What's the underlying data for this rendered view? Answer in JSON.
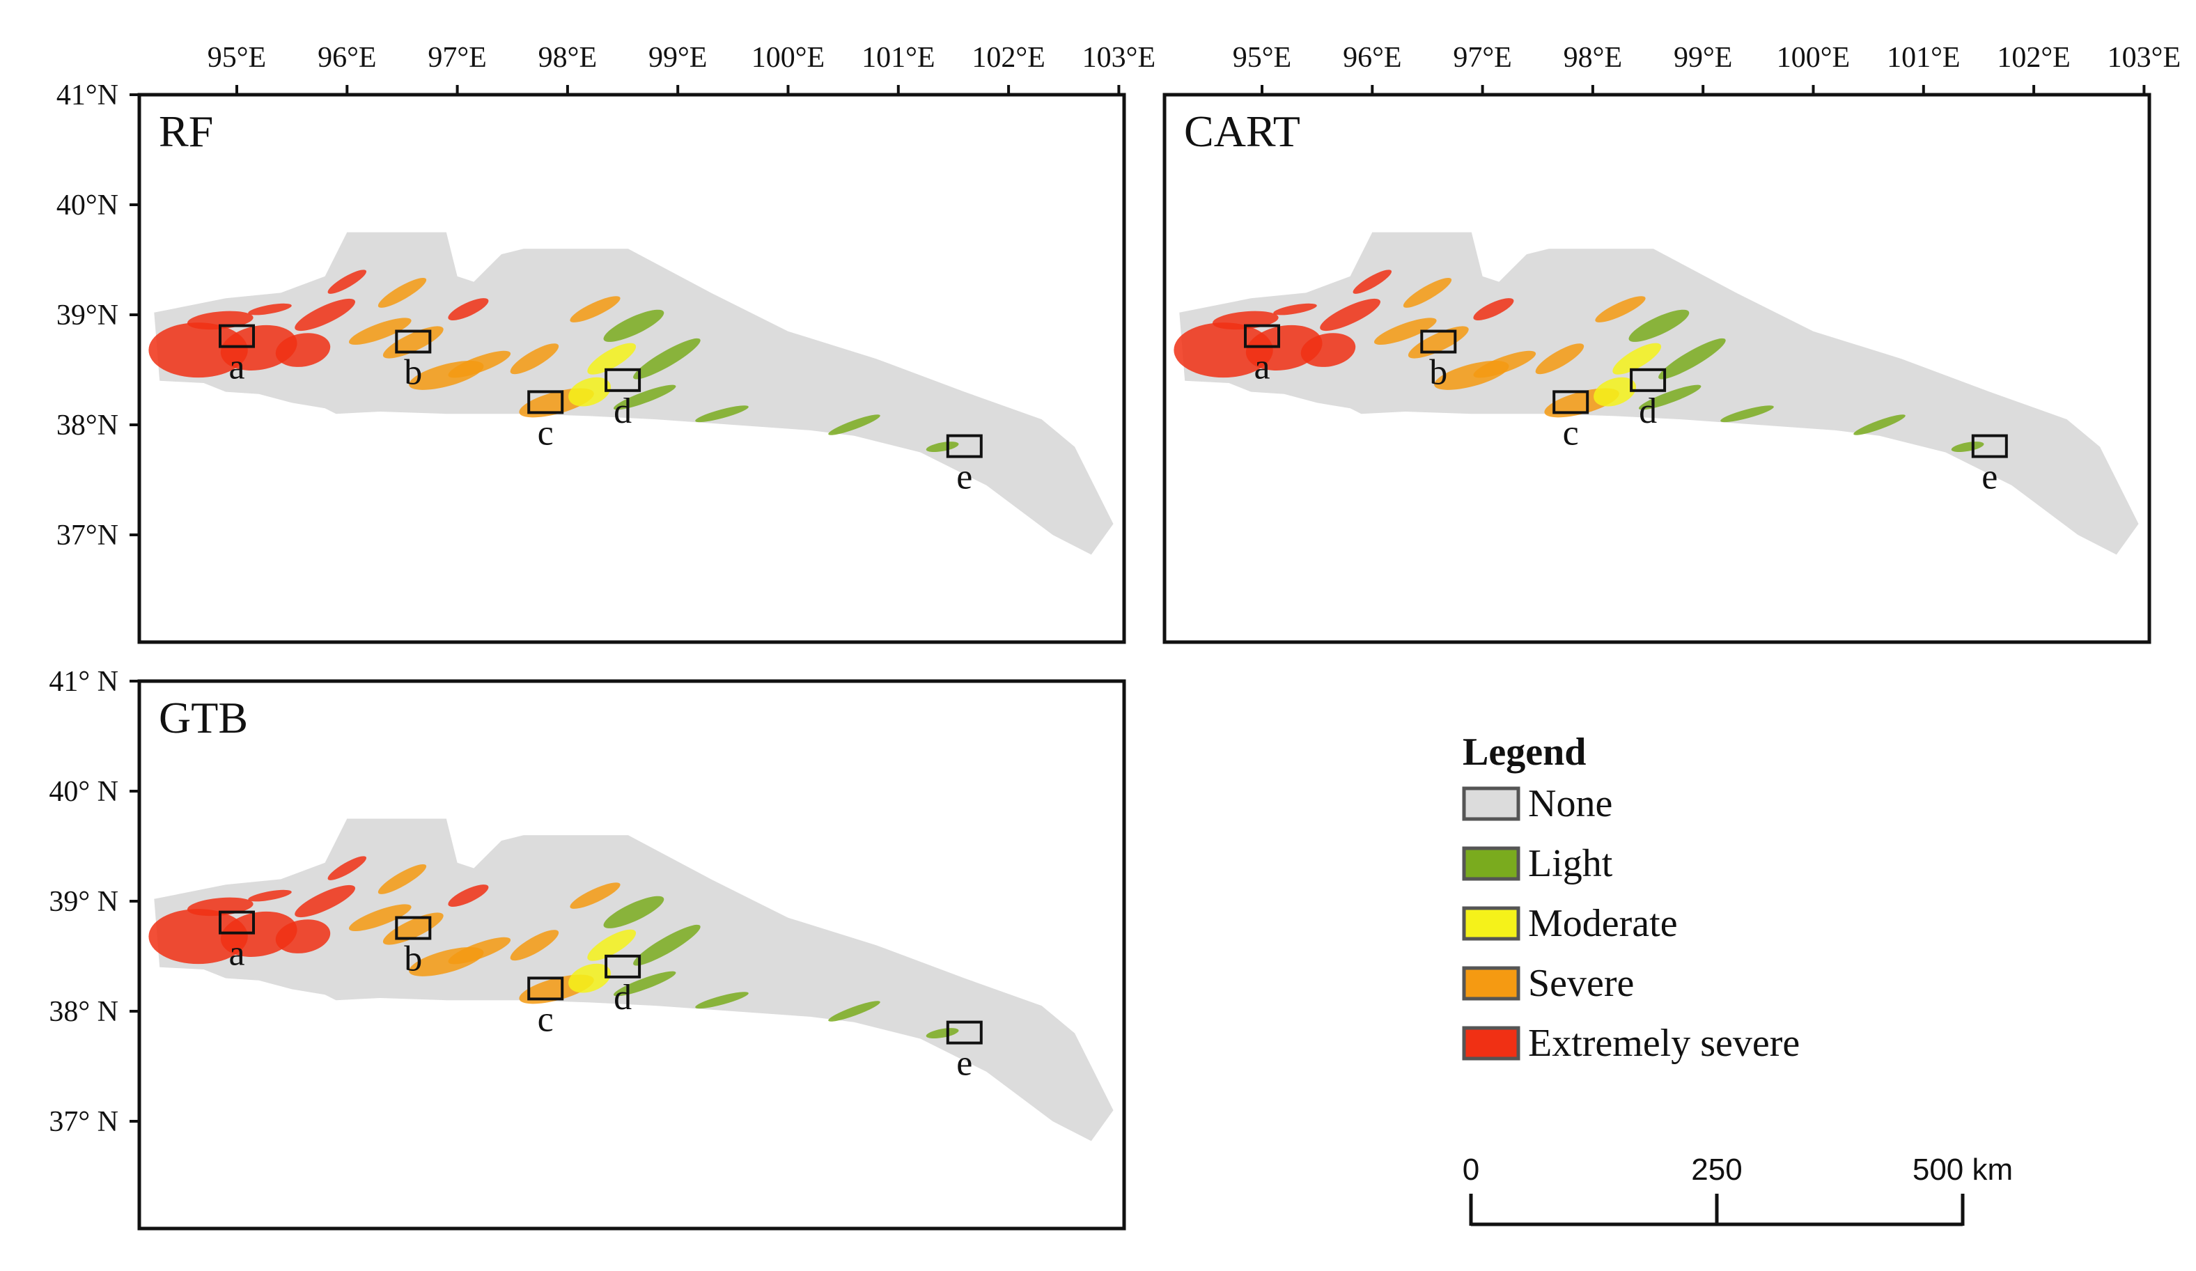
{
  "figure": {
    "lon_ticks": [
      95,
      96,
      97,
      98,
      99,
      100,
      101,
      102,
      103
    ],
    "lat_ticks": [
      41,
      40,
      39,
      38,
      37
    ],
    "lon_labels": [
      "95°E",
      "96°E",
      "97°E",
      "98°E",
      "99°E",
      "100°E",
      "101°E",
      "102°E",
      "103°E"
    ],
    "lat_labels_top": [
      "41°N",
      "40°N",
      "39°N",
      "38°N",
      "37°N"
    ],
    "lat_labels_bottom": [
      "41° N",
      "40° N",
      "39° N",
      "38° N",
      "37° N"
    ],
    "lon_range": [
      94.25,
      103.25
    ],
    "lat_range": [
      36.0,
      41.0
    ]
  },
  "panels": [
    {
      "id": "rf",
      "title": "RF",
      "dominant_hue_shift": 0
    },
    {
      "id": "cart",
      "title": "CART",
      "dominant_hue_shift": 0
    },
    {
      "id": "gtb",
      "title": "GTB",
      "dominant_hue_shift": 0
    }
  ],
  "sites": [
    {
      "label": "a",
      "lon": 95.0,
      "lat": 38.8
    },
    {
      "label": "b",
      "lon": 96.6,
      "lat": 38.75
    },
    {
      "label": "c",
      "lon": 97.8,
      "lat": 38.2
    },
    {
      "label": "d",
      "lon": 98.5,
      "lat": 38.4
    },
    {
      "label": "e",
      "lon": 101.6,
      "lat": 37.8
    }
  ],
  "legend": {
    "title": "Legend",
    "classes": [
      {
        "label": "None",
        "color": "#dcdcdc"
      },
      {
        "label": "Light",
        "color": "#7aab1e"
      },
      {
        "label": "Moderate",
        "color": "#f5f21a"
      },
      {
        "label": "Severe",
        "color": "#f59a12"
      },
      {
        "label": "Extremely severe",
        "color": "#f03014"
      }
    ]
  },
  "scale_bar": {
    "labels": [
      "0",
      "250",
      "500 km"
    ],
    "unit": "km"
  }
}
